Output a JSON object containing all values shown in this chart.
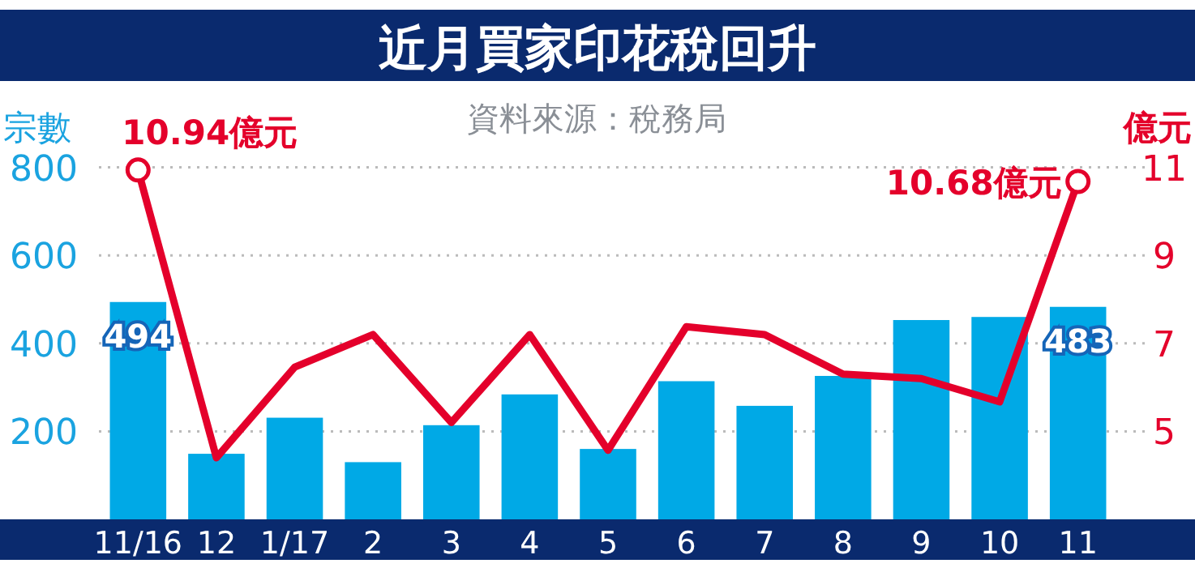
{
  "chart_data": {
    "type": "bar",
    "title": "近月買家印花稅回升",
    "ylabel": "宗數",
    "y2label": "億元",
    "categories": [
      "11/16",
      "12",
      "1/17",
      "2",
      "3",
      "4",
      "5",
      "6",
      "7",
      "8",
      "9",
      "10",
      "11"
    ],
    "series": [
      {
        "color": "#00a9e6",
        "values": [
          494,
          149,
          231,
          130,
          214,
          284,
          160,
          314,
          258,
          326,
          453,
          460,
          483
        ],
        "value_labels": [
          "494",
          null,
          null,
          null,
          null,
          null,
          null,
          null,
          null,
          null,
          null,
          null,
          "483"
        ]
      },
      {
        "type": "line",
        "axis": "y2",
        "color": "#e4002b",
        "marker": "none",
        "line_style": "solid",
        "values": [
          10.94,
          4.4,
          6.46,
          7.2,
          5.2,
          7.2,
          4.57,
          7.38,
          7.2,
          6.3,
          6.2,
          5.67,
          10.68
        ],
        "value_labels": [
          "10.94億元",
          null,
          null,
          null,
          null,
          null,
          null,
          null,
          null,
          null,
          null,
          null,
          "10.68億元"
        ]
      }
    ],
    "ylim": [
      0,
      800
    ],
    "yticks": [
      200,
      400,
      600,
      800
    ],
    "y2lim": [
      3,
      11
    ],
    "y2ticks": [
      5,
      7,
      9,
      11
    ],
    "grid": "y",
    "annotations": [
      "資料來源：稅務局"
    ]
  }
}
